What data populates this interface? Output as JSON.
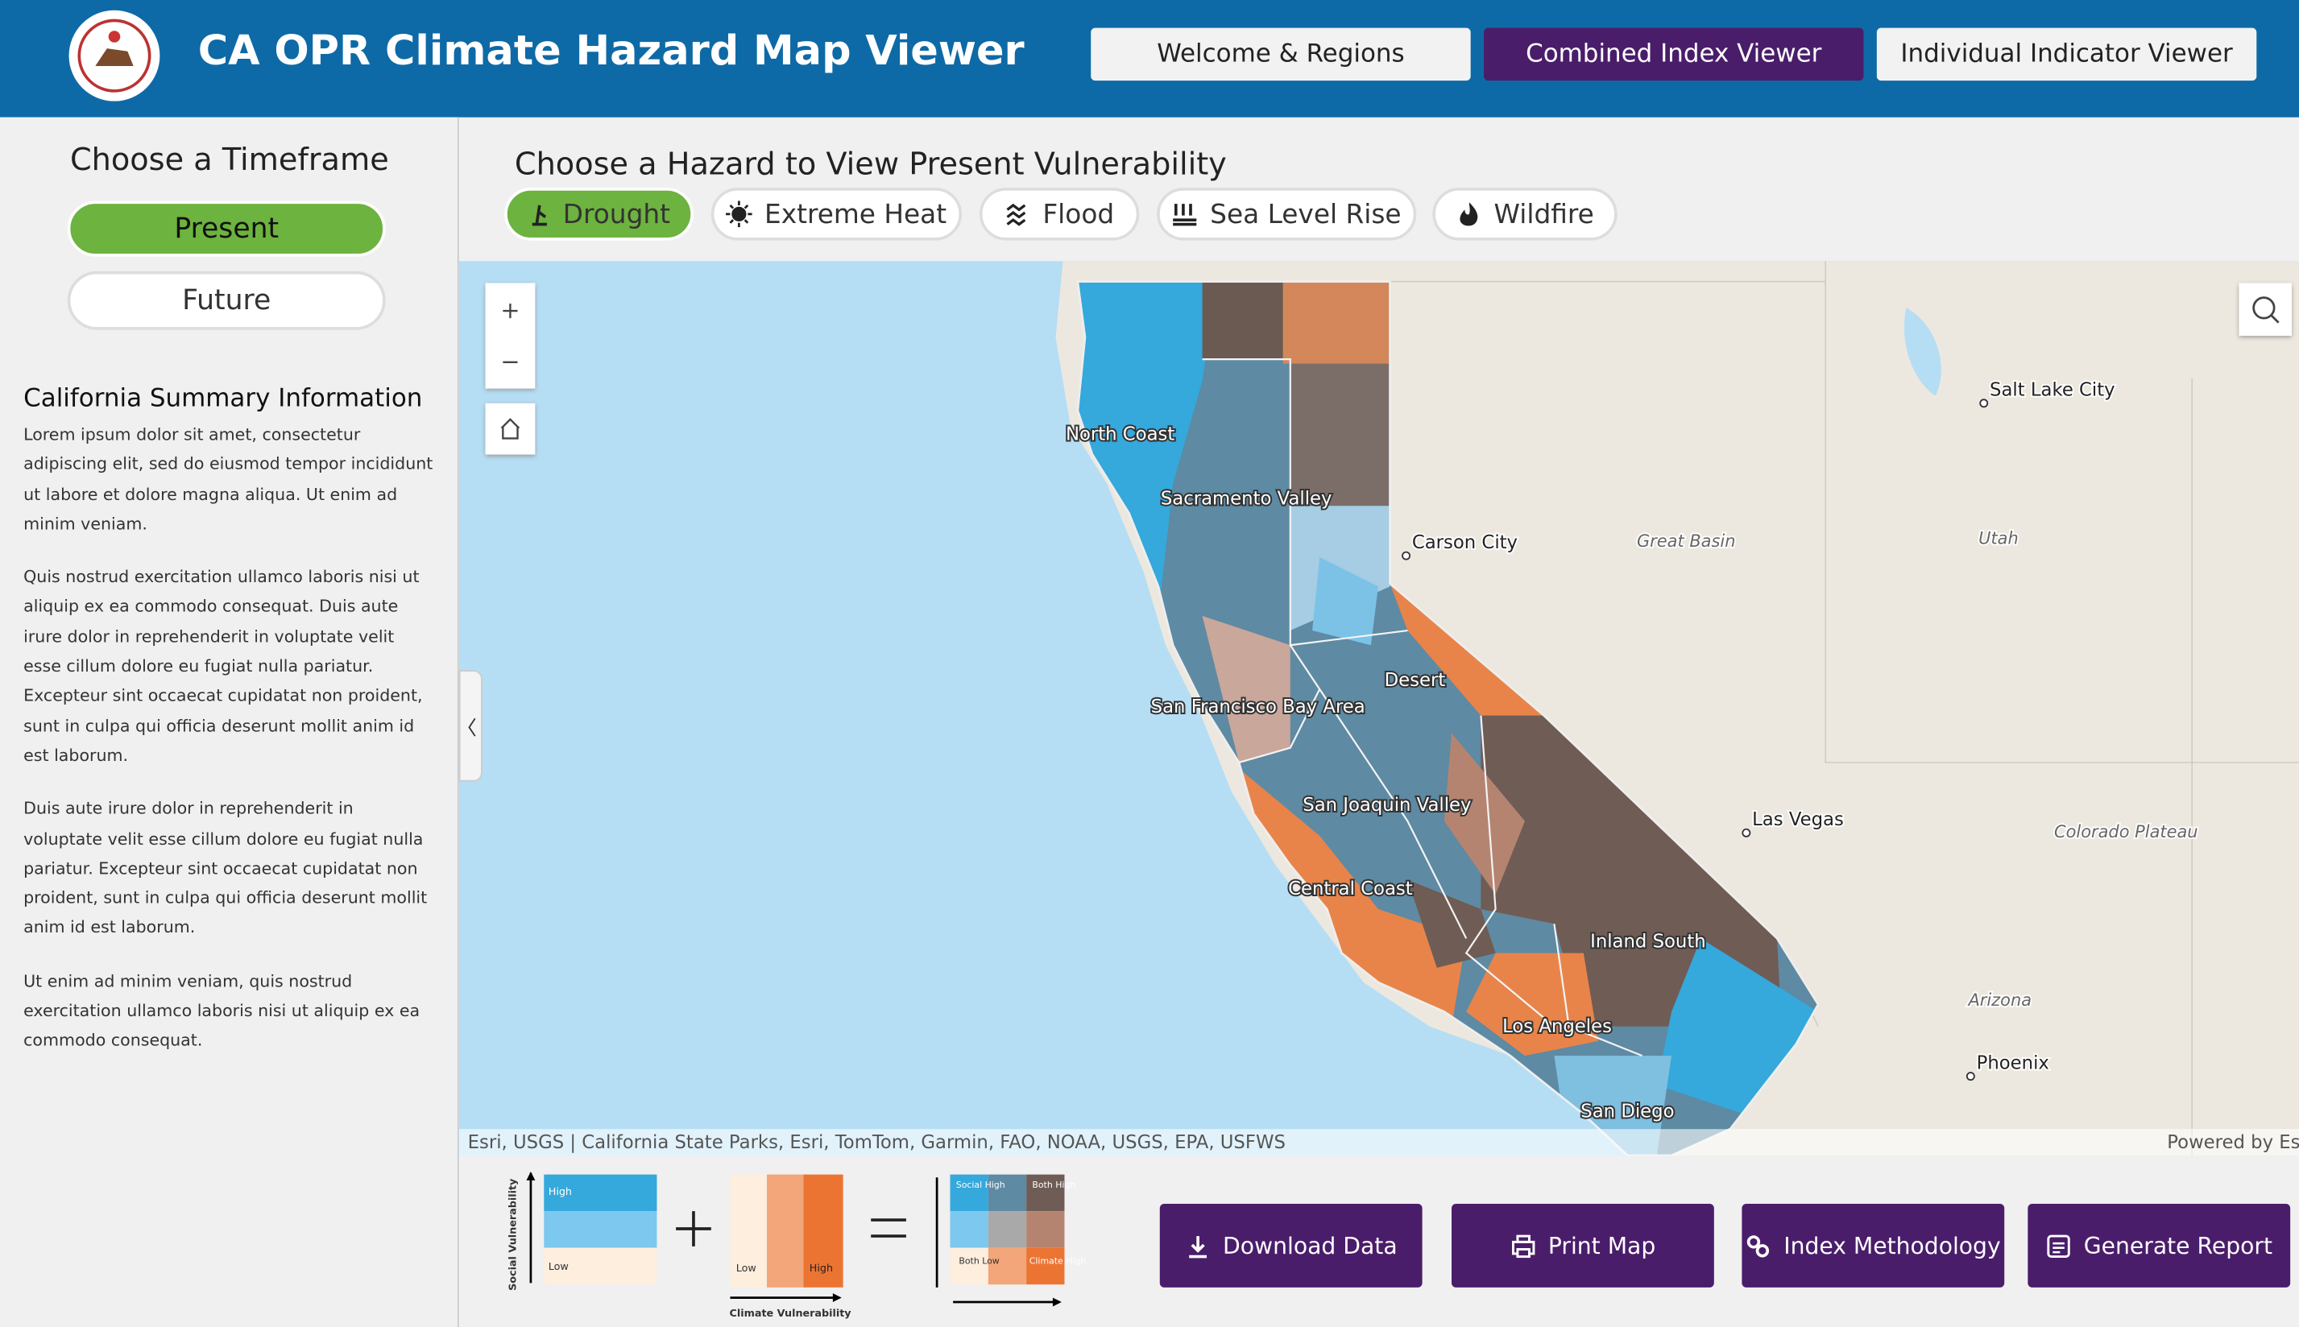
{
  "header": {
    "title": "CA OPR Climate Hazard Map Viewer",
    "nav": [
      "Welcome & Regions",
      "Combined Index Viewer",
      "Individual Indicator Viewer"
    ]
  },
  "sidebar": {
    "timeframe_title": "Choose a Timeframe",
    "timeframes": [
      "Present",
      "Future"
    ],
    "summary_title": "California Summary Information",
    "paragraphs": [
      "Lorem ipsum dolor sit amet, consectetur adipiscing elit, sed do eiusmod tempor incididunt ut labore et dolore magna aliqua. Ut enim ad minim veniam.",
      "Quis nostrud exercitation ullamco laboris nisi ut aliquip ex ea commodo consequat. Duis aute irure dolor in reprehenderit in voluptate velit esse cillum dolore eu fugiat nulla pariatur. Excepteur sint occaecat cupidatat non proident, sunt in culpa qui officia deserunt mollit anim id est laborum.",
      "Duis aute irure dolor in reprehenderit in voluptate velit esse cillum dolore eu fugiat nulla pariatur. Excepteur sint occaecat cupidatat non proident, sunt in culpa qui officia deserunt mollit anim id est laborum.",
      "Ut enim ad minim veniam, quis nostrud exercitation ullamco laboris nisi ut aliquip ex ea commodo consequat."
    ]
  },
  "main": {
    "hazard_title": "Choose a Hazard to View Present Vulnerability",
    "hazards": [
      "Drought",
      "Extreme Heat",
      "Flood",
      "Sea Level Rise",
      "Wildfire"
    ],
    "map": {
      "region_labels": [
        "North Coast",
        "Sacramento Valley",
        "San Francisco Bay Area",
        "Desert",
        "San Joaquin Valley",
        "Central Coast",
        "Inland South",
        "Los Angeles",
        "San Diego"
      ],
      "place_labels": [
        "Salt Lake City",
        "Carson City",
        "Great Basin",
        "Utah",
        "Las Vegas",
        "Colorado Plateau",
        "Arizona",
        "Phoenix"
      ],
      "attribution": "Esri, USGS | California State Parks, Esri, TomTom, Garmin, FAO, NOAA, USGS, EPA, USFWS",
      "powered_by": "Powered by Esri"
    },
    "legend": {
      "y_axis": "Social Vulnerability",
      "x_axis": "Climate Vulnerability",
      "high": "High",
      "low": "Low",
      "social_high": "Social High",
      "both_high": "Both High",
      "both_low": "Both Low",
      "climate_high": "Climate High"
    },
    "actions": [
      "Download Data",
      "Print Map",
      "Index Methodology",
      "Generate Report"
    ]
  }
}
